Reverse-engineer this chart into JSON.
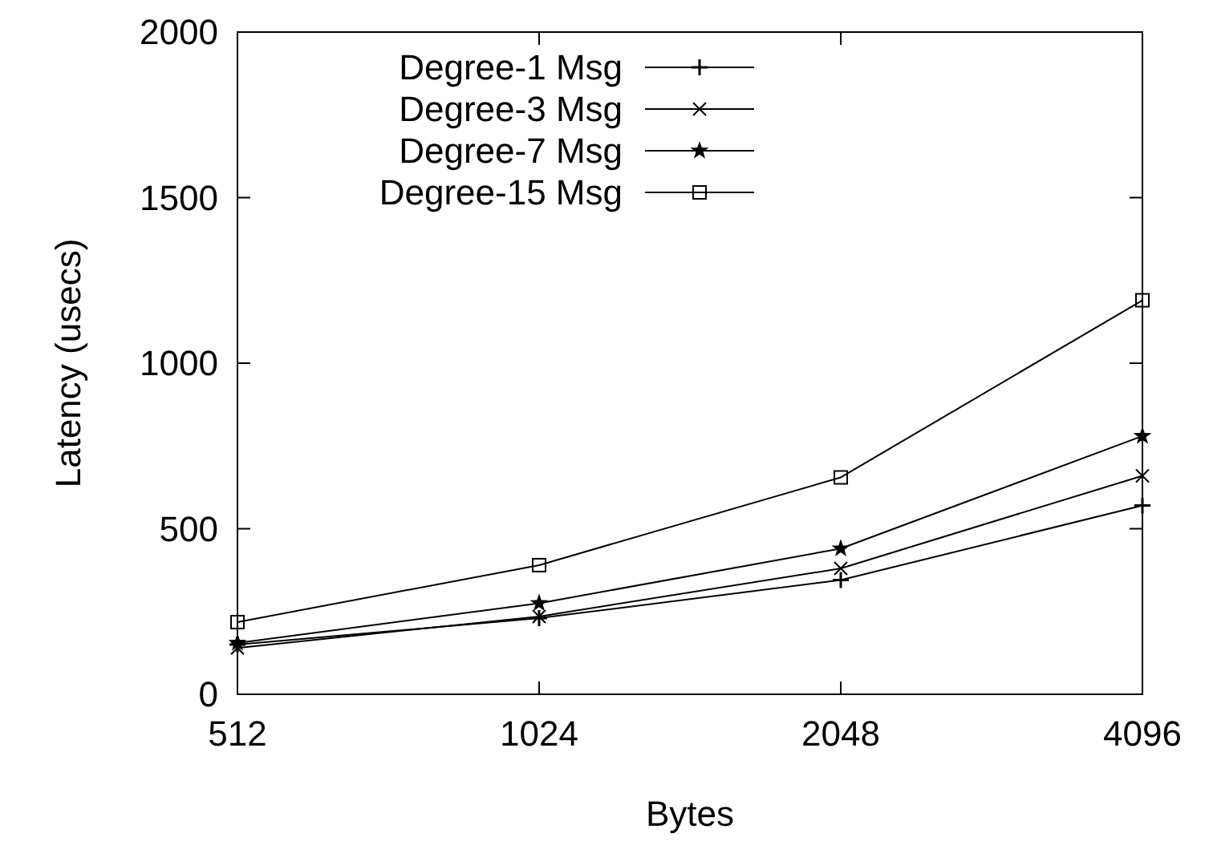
{
  "chart_data": {
    "type": "line",
    "xlabel": "Bytes",
    "ylabel": "Latency (usecs)",
    "x": [
      512,
      1024,
      2048,
      4096
    ],
    "log": "x",
    "xlim": [
      512,
      4096
    ],
    "xticks": [
      512,
      1024,
      2048,
      4096
    ],
    "ylim": [
      0,
      2000
    ],
    "yticks": [
      0,
      500,
      1000,
      1500,
      2000
    ],
    "legend": "top left",
    "grid": false,
    "line_style": "solid",
    "series": [
      {
        "name": "Degree-1 Msg",
        "color": "#000000",
        "marker": "plus",
        "values": [
          150,
          230,
          345,
          570
        ]
      },
      {
        "name": "Degree-3 Msg",
        "color": "#000000",
        "marker": "cross",
        "values": [
          140,
          235,
          380,
          660
        ]
      },
      {
        "name": "Degree-7 Msg",
        "color": "#000000",
        "marker": "star",
        "values": [
          155,
          275,
          440,
          780
        ]
      },
      {
        "name": "Degree-15 Msg",
        "color": "#000000",
        "marker": "square",
        "values": [
          218,
          390,
          655,
          1190
        ]
      }
    ]
  }
}
